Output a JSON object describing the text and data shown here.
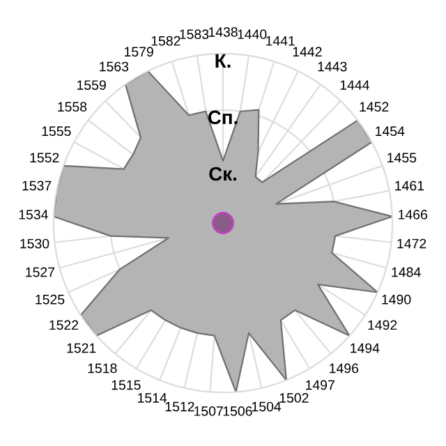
{
  "chart_data": {
    "type": "radar",
    "categories": [
      "1438",
      "1440",
      "1441",
      "1442",
      "1443",
      "1444",
      "1452",
      "1454",
      "1455",
      "1461",
      "1466",
      "1472",
      "1484",
      "1490",
      "1492",
      "1494",
      "1496",
      "1497",
      "1502",
      "1504",
      "1506",
      "1507",
      "1512",
      "1514",
      "1515",
      "1518",
      "1521",
      "1522",
      "1525",
      "1527",
      "1530",
      "1534",
      "1537",
      "1552",
      "1555",
      "1558",
      "1559",
      "1563",
      "1579",
      "1582",
      "1583"
    ],
    "series": [
      {
        "color": "#b4b4b4",
        "values": [
          1.1,
          2,
          2.1,
          1.4,
          1,
          1,
          3,
          3,
          1,
          2,
          3,
          2,
          2,
          3,
          2,
          3,
          2,
          2,
          3,
          2,
          3,
          2,
          2,
          2,
          2,
          2,
          3,
          3,
          2,
          1,
          2,
          3,
          3,
          3,
          2,
          2,
          2.1,
          3,
          3,
          2,
          2
        ]
      }
    ],
    "ylim": [
      0,
      3
    ],
    "yticks": [
      {
        "value": 1,
        "label": "Ск."
      },
      {
        "value": 2,
        "label": "Сп."
      },
      {
        "value": 3,
        "label": "К."
      }
    ],
    "grid": true,
    "marker": "none",
    "line_style": "solid"
  }
}
